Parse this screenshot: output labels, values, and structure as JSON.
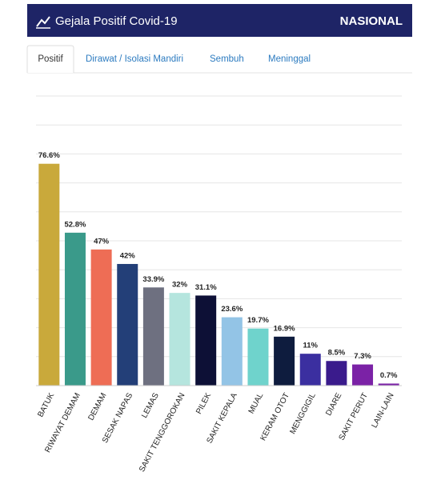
{
  "header": {
    "title": "Gejala Positif Covid-19",
    "region": "NASIONAL"
  },
  "tabs": [
    "Positif",
    "Dirawat / Isolasi Mandiri",
    "Sembuh",
    "Meninggal"
  ],
  "chart_data": {
    "type": "bar",
    "categories": [
      "BATUK",
      "RIWAYAT DEMAM",
      "DEMAM",
      "SESAK NAPAS",
      "LEMAS",
      "SAKIT TENGGOROKAN",
      "PILEK",
      "SAKIT KEPALA",
      "MUAL",
      "KERAM OTOT",
      "MENGGIGIL",
      "DIARE",
      "SAKIT PERUT",
      "LAIN-LAIN"
    ],
    "values": [
      76.6,
      52.8,
      47,
      42,
      33.9,
      32,
      31.1,
      23.6,
      19.7,
      16.9,
      11,
      8.5,
      7.3,
      0.7
    ],
    "value_labels": [
      "76.6%",
      "52.8%",
      "47%",
      "42%",
      "33.9%",
      "32%",
      "31.1%",
      "23.6%",
      "19.7%",
      "16.9%",
      "11%",
      "8.5%",
      "7.3%",
      "0.7%"
    ],
    "colors": [
      "#c9a93b",
      "#3a9a8a",
      "#ee6d55",
      "#233f78",
      "#6e7080",
      "#b5e5de",
      "#0d1036",
      "#93c4e6",
      "#6fd3cc",
      "#0e1c3e",
      "#3b2fa0",
      "#3a1b8c",
      "#7b22a6",
      "#7b22a6"
    ],
    "ylim": [
      0,
      100
    ],
    "yticks": [
      0,
      10,
      20,
      30,
      40,
      50,
      60,
      70,
      80,
      90,
      100
    ],
    "grid": true
  }
}
